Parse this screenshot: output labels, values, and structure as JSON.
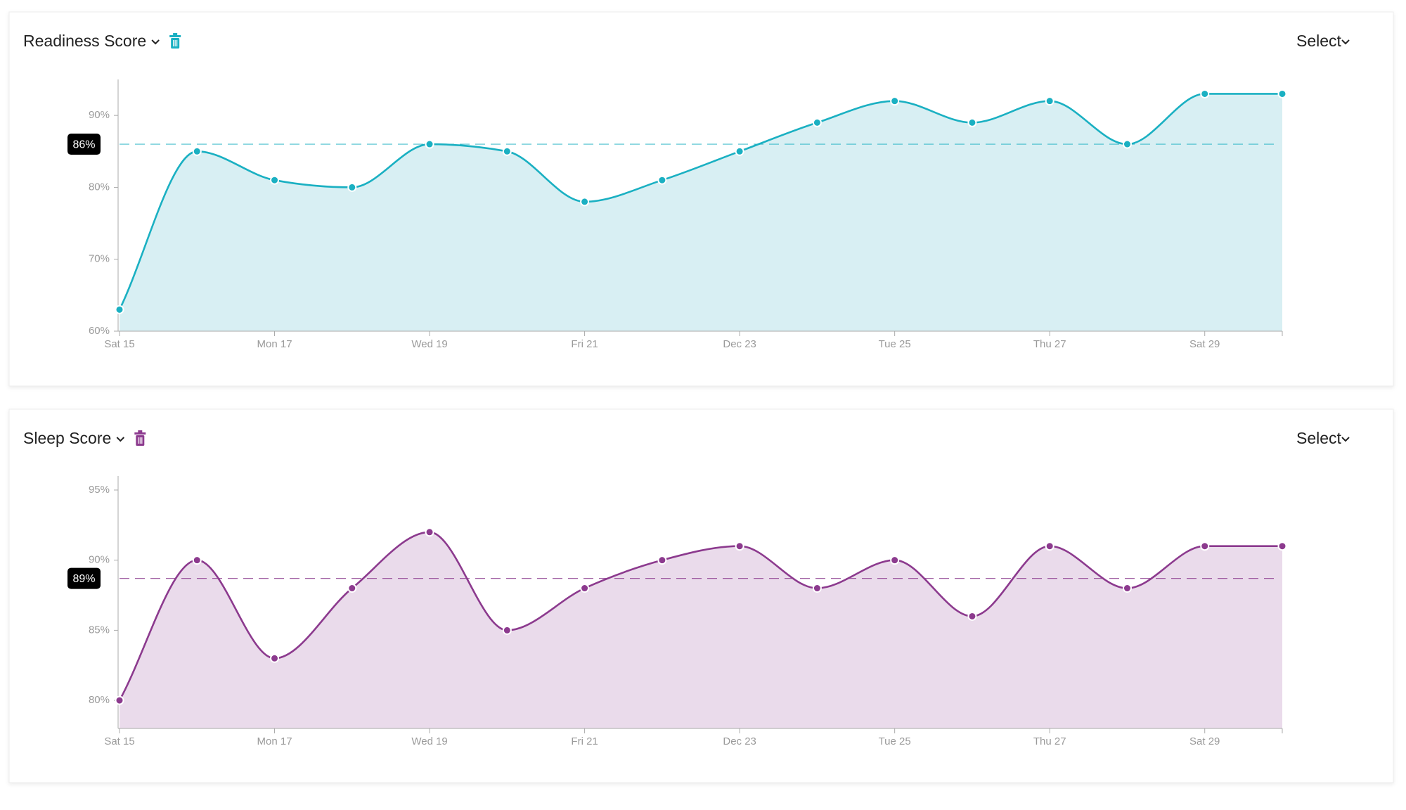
{
  "chart_data": [
    {
      "type": "area",
      "title": "Readiness Score",
      "control_label": "Select",
      "categories": [
        "Sat 15",
        null,
        "Mon 17",
        null,
        "Wed 19",
        null,
        "Fri 21",
        null,
        "Dec 23",
        null,
        "Tue 25",
        null,
        "Thu 27",
        null,
        "Sat 29",
        null
      ],
      "values": [
        63,
        85,
        81,
        80,
        86,
        85,
        78,
        81,
        85,
        89,
        92,
        89,
        92,
        86,
        93,
        93
      ],
      "color": "#1ab0c2",
      "fill_color": "#d8eff3",
      "ylim": [
        60,
        95
      ],
      "yticks": [
        {
          "value": 60,
          "label": "60%"
        },
        {
          "value": 70,
          "label": "70%"
        },
        {
          "value": 80,
          "label": "80%"
        },
        {
          "value": 90,
          "label": "90%"
        }
      ],
      "reference_line": {
        "value": 86,
        "label": "86%"
      }
    },
    {
      "type": "area",
      "title": "Sleep Score",
      "control_label": "Select",
      "categories": [
        "Sat 15",
        null,
        "Mon 17",
        null,
        "Wed 19",
        null,
        "Fri 21",
        null,
        "Dec 23",
        null,
        "Tue 25",
        null,
        "Thu 27",
        null,
        "Sat 29",
        null
      ],
      "values": [
        80,
        90,
        83,
        88,
        92,
        85,
        88,
        90,
        91,
        88,
        90,
        86,
        91,
        88,
        91,
        91
      ],
      "color": "#8c3a8e",
      "fill_color": "#eadbeb",
      "ylim": [
        78,
        96
      ],
      "yticks": [
        {
          "value": 80,
          "label": "80%"
        },
        {
          "value": 85,
          "label": "85%"
        },
        {
          "value": 90,
          "label": "90%"
        },
        {
          "value": 95,
          "label": "95%"
        }
      ],
      "reference_line": {
        "value": 88.7,
        "label": "89%"
      }
    }
  ]
}
